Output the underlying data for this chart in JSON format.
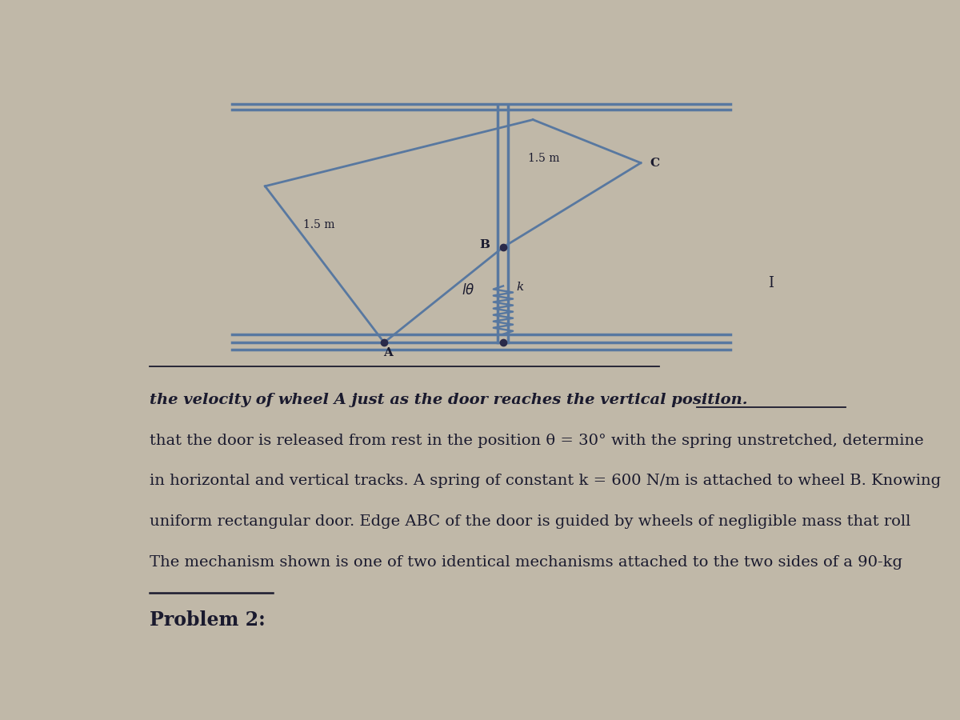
{
  "background_color": "#c0b8a8",
  "title_text": "Problem 2:",
  "title_fontsize": 17,
  "body_lines": [
    "The mechanism shown is one of two identical mechanisms attached to the two sides of a 90-kg",
    "uniform rectangular door. Edge ABC of the door is guided by wheels of negligible mass that roll",
    "in horizontal and vertical tracks. A spring of constant k = 600 N/m is attached to wheel B. Knowing",
    "that the door is released from rest in the position θ = 30° with the spring unstretched, determine",
    "the velocity of wheel A just as the door reaches the vertical position."
  ],
  "body_fontsize": 14,
  "text_color": "#1a1a2e",
  "track_color": "#5878a0",
  "door_color": "#5878a0",
  "diagram_bg": "#c0b8a8"
}
